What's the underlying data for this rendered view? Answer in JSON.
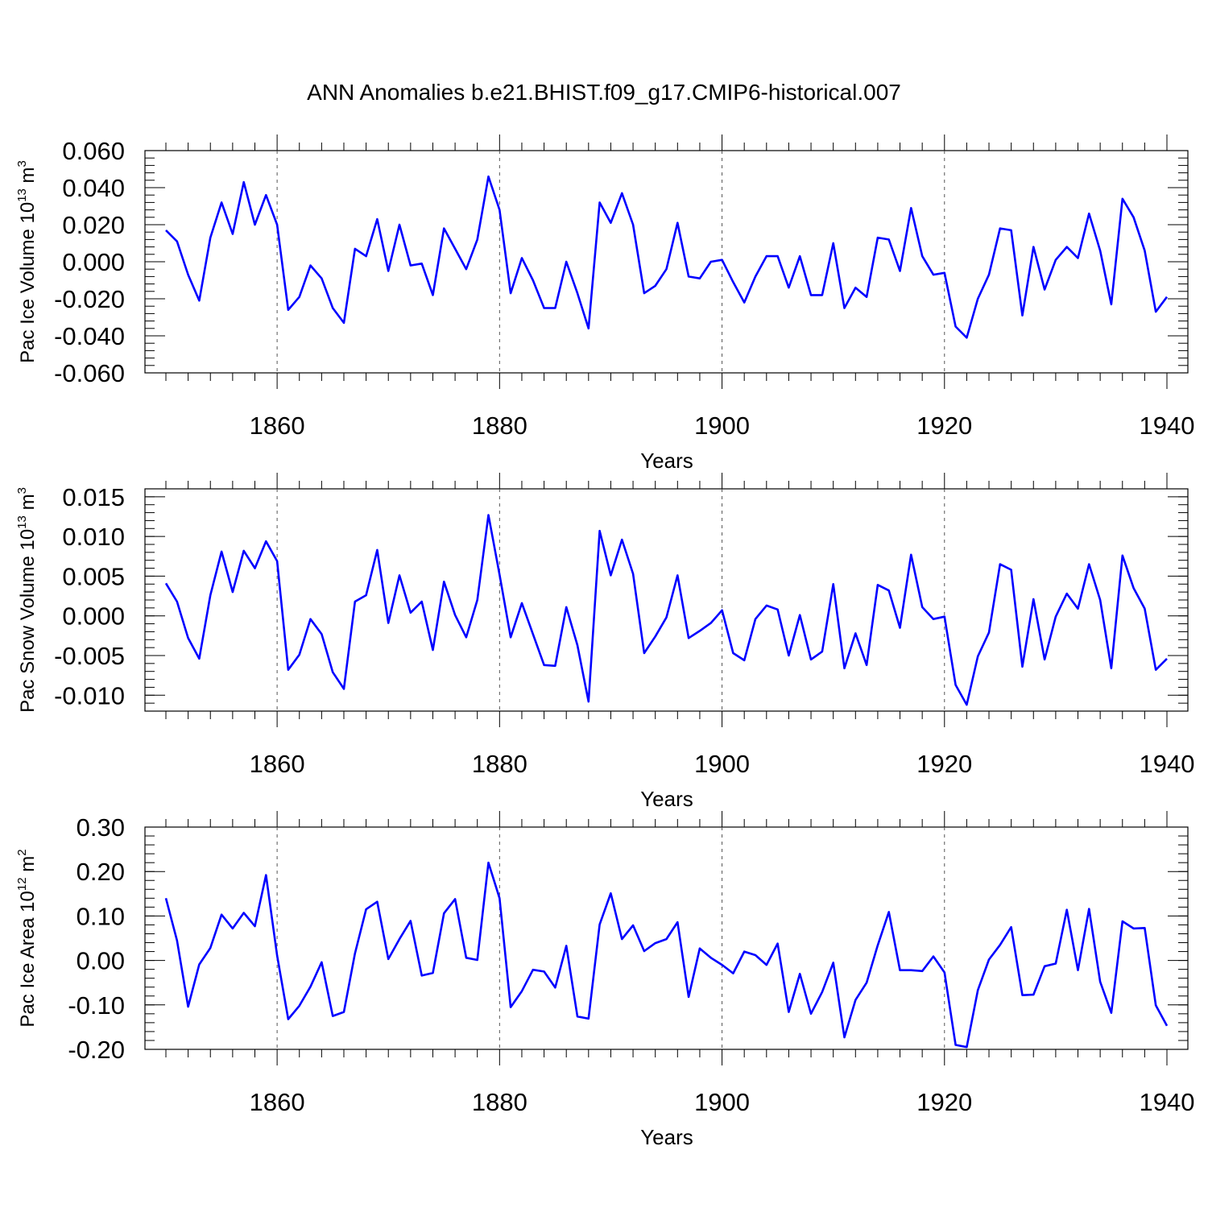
{
  "title": "ANN Anomalies b.e21.BHIST.f09_g17.CMIP6-historical.007",
  "colors": {
    "line": "#0000ff",
    "axis": "#000000",
    "grid": "#555555"
  },
  "chart_data": [
    {
      "type": "line",
      "xlabel": "Years",
      "ylabel": {
        "main": "Pac Ice Volume 10",
        "sup": "13",
        "unit": " m",
        "unit_sup": "3"
      },
      "xlim": [
        1850,
        1940
      ],
      "ylim": [
        -0.06,
        0.06
      ],
      "x_ticks": [
        1860,
        1880,
        1900,
        1920,
        1940
      ],
      "y_ticks": [
        "-0.060",
        "-0.040",
        "-0.020",
        "0.000",
        "0.020",
        "0.040",
        "0.060"
      ],
      "grid": "vertical dashed at x ticks",
      "x_start": 1850,
      "values": [
        0.017,
        0.011,
        -0.007,
        -0.021,
        0.013,
        0.032,
        0.015,
        0.043,
        0.02,
        0.036,
        0.02,
        -0.026,
        -0.019,
        -0.002,
        -0.009,
        -0.025,
        -0.033,
        0.007,
        0.003,
        0.023,
        -0.005,
        0.02,
        -0.002,
        -0.001,
        -0.018,
        0.018,
        0.007,
        -0.004,
        0.012,
        0.046,
        0.028,
        -0.017,
        0.002,
        -0.01,
        -0.025,
        -0.025,
        0.0,
        -0.017,
        -0.036,
        0.032,
        0.021,
        0.037,
        0.02,
        -0.017,
        -0.013,
        -0.004,
        0.021,
        -0.008,
        -0.009,
        0.0,
        0.001,
        -0.011,
        -0.022,
        -0.008,
        0.003,
        0.003,
        -0.014,
        0.003,
        -0.018,
        -0.018,
        0.01,
        -0.025,
        -0.014,
        -0.019,
        0.013,
        0.012,
        -0.005,
        0.029,
        0.003,
        -0.007,
        -0.006,
        -0.035,
        -0.041,
        -0.02,
        -0.007,
        0.018,
        0.017,
        -0.029,
        0.008,
        -0.015,
        0.001,
        0.008,
        0.002,
        0.026,
        0.006,
        -0.023,
        0.034,
        0.024,
        0.006,
        -0.027,
        -0.019
      ]
    },
    {
      "type": "line",
      "xlabel": "Years",
      "ylabel": {
        "main": "Pac Snow Volume 10",
        "sup": "13",
        "unit": " m",
        "unit_sup": "3"
      },
      "xlim": [
        1850,
        1940
      ],
      "ylim": [
        -0.012,
        0.016
      ],
      "x_ticks": [
        1860,
        1880,
        1900,
        1920,
        1940
      ],
      "y_ticks": [
        "-0.010",
        "-0.005",
        "0.000",
        "0.005",
        "0.010",
        "0.015"
      ],
      "grid": "vertical dashed at x ticks",
      "x_start": 1850,
      "values": [
        0.0041,
        0.0018,
        -0.0028,
        -0.0054,
        0.0026,
        0.0081,
        0.003,
        0.0082,
        0.006,
        0.0094,
        0.0069,
        -0.0068,
        -0.0049,
        -0.0004,
        -0.0023,
        -0.0071,
        -0.0092,
        0.0018,
        0.0026,
        0.0083,
        -0.0009,
        0.0051,
        0.0004,
        0.0018,
        -0.0043,
        0.0043,
        0.0001,
        -0.0027,
        0.002,
        0.0127,
        0.0052,
        -0.0027,
        0.0016,
        -0.0023,
        -0.0062,
        -0.0063,
        0.0011,
        -0.0037,
        -0.0108,
        0.0107,
        0.0051,
        0.0096,
        0.0053,
        -0.0047,
        -0.0026,
        -0.0002,
        0.0051,
        -0.0028,
        -0.0019,
        -0.0009,
        0.0007,
        -0.0047,
        -0.0056,
        -0.0004,
        0.0013,
        0.0008,
        -0.005,
        0.0001,
        -0.0055,
        -0.0045,
        0.004,
        -0.0066,
        -0.0022,
        -0.0062,
        0.0039,
        0.0032,
        -0.0015,
        0.0077,
        0.0011,
        -0.0004,
        -0.0001,
        -0.0087,
        -0.0112,
        -0.0051,
        -0.0021,
        0.0065,
        0.0058,
        -0.0064,
        0.0021,
        -0.0055,
        -0.0001,
        0.0028,
        0.0009,
        0.0065,
        0.002,
        -0.0066,
        0.0076,
        0.0035,
        0.0009,
        -0.0068,
        -0.0054
      ]
    },
    {
      "type": "line",
      "xlabel": "Years",
      "ylabel": {
        "main": "Pac Ice Area 10",
        "sup": "12",
        "unit": " m",
        "unit_sup": "2"
      },
      "xlim": [
        1850,
        1940
      ],
      "ylim": [
        -0.2,
        0.3
      ],
      "x_ticks": [
        1860,
        1880,
        1900,
        1920,
        1940
      ],
      "y_ticks": [
        "-0.20",
        "-0.10",
        "0.00",
        "0.10",
        "0.20",
        "0.30"
      ],
      "grid": "vertical dashed at x ticks",
      "x_start": 1850,
      "values": [
        0.14,
        0.045,
        -0.104,
        -0.009,
        0.028,
        0.103,
        0.072,
        0.107,
        0.077,
        0.192,
        0.011,
        -0.132,
        -0.102,
        -0.059,
        -0.004,
        -0.125,
        -0.116,
        0.016,
        0.115,
        0.132,
        0.003,
        0.048,
        0.089,
        -0.034,
        -0.028,
        0.106,
        0.138,
        0.006,
        0.001,
        0.22,
        0.14,
        -0.105,
        -0.069,
        -0.021,
        -0.025,
        -0.061,
        0.033,
        -0.126,
        -0.131,
        0.081,
        0.151,
        0.048,
        0.079,
        0.021,
        0.039,
        0.048,
        0.086,
        -0.082,
        0.027,
        0.006,
        -0.01,
        -0.029,
        0.02,
        0.012,
        -0.01,
        0.038,
        -0.116,
        -0.03,
        -0.12,
        -0.071,
        -0.005,
        -0.173,
        -0.089,
        -0.05,
        0.034,
        0.109,
        -0.022,
        -0.022,
        -0.024,
        0.009,
        -0.027,
        -0.19,
        -0.195,
        -0.067,
        0.002,
        0.035,
        0.075,
        -0.078,
        -0.077,
        -0.013,
        -0.007,
        0.114,
        -0.022,
        0.116,
        -0.048,
        -0.118,
        0.088,
        0.072,
        0.073,
        -0.101,
        -0.147
      ]
    }
  ]
}
